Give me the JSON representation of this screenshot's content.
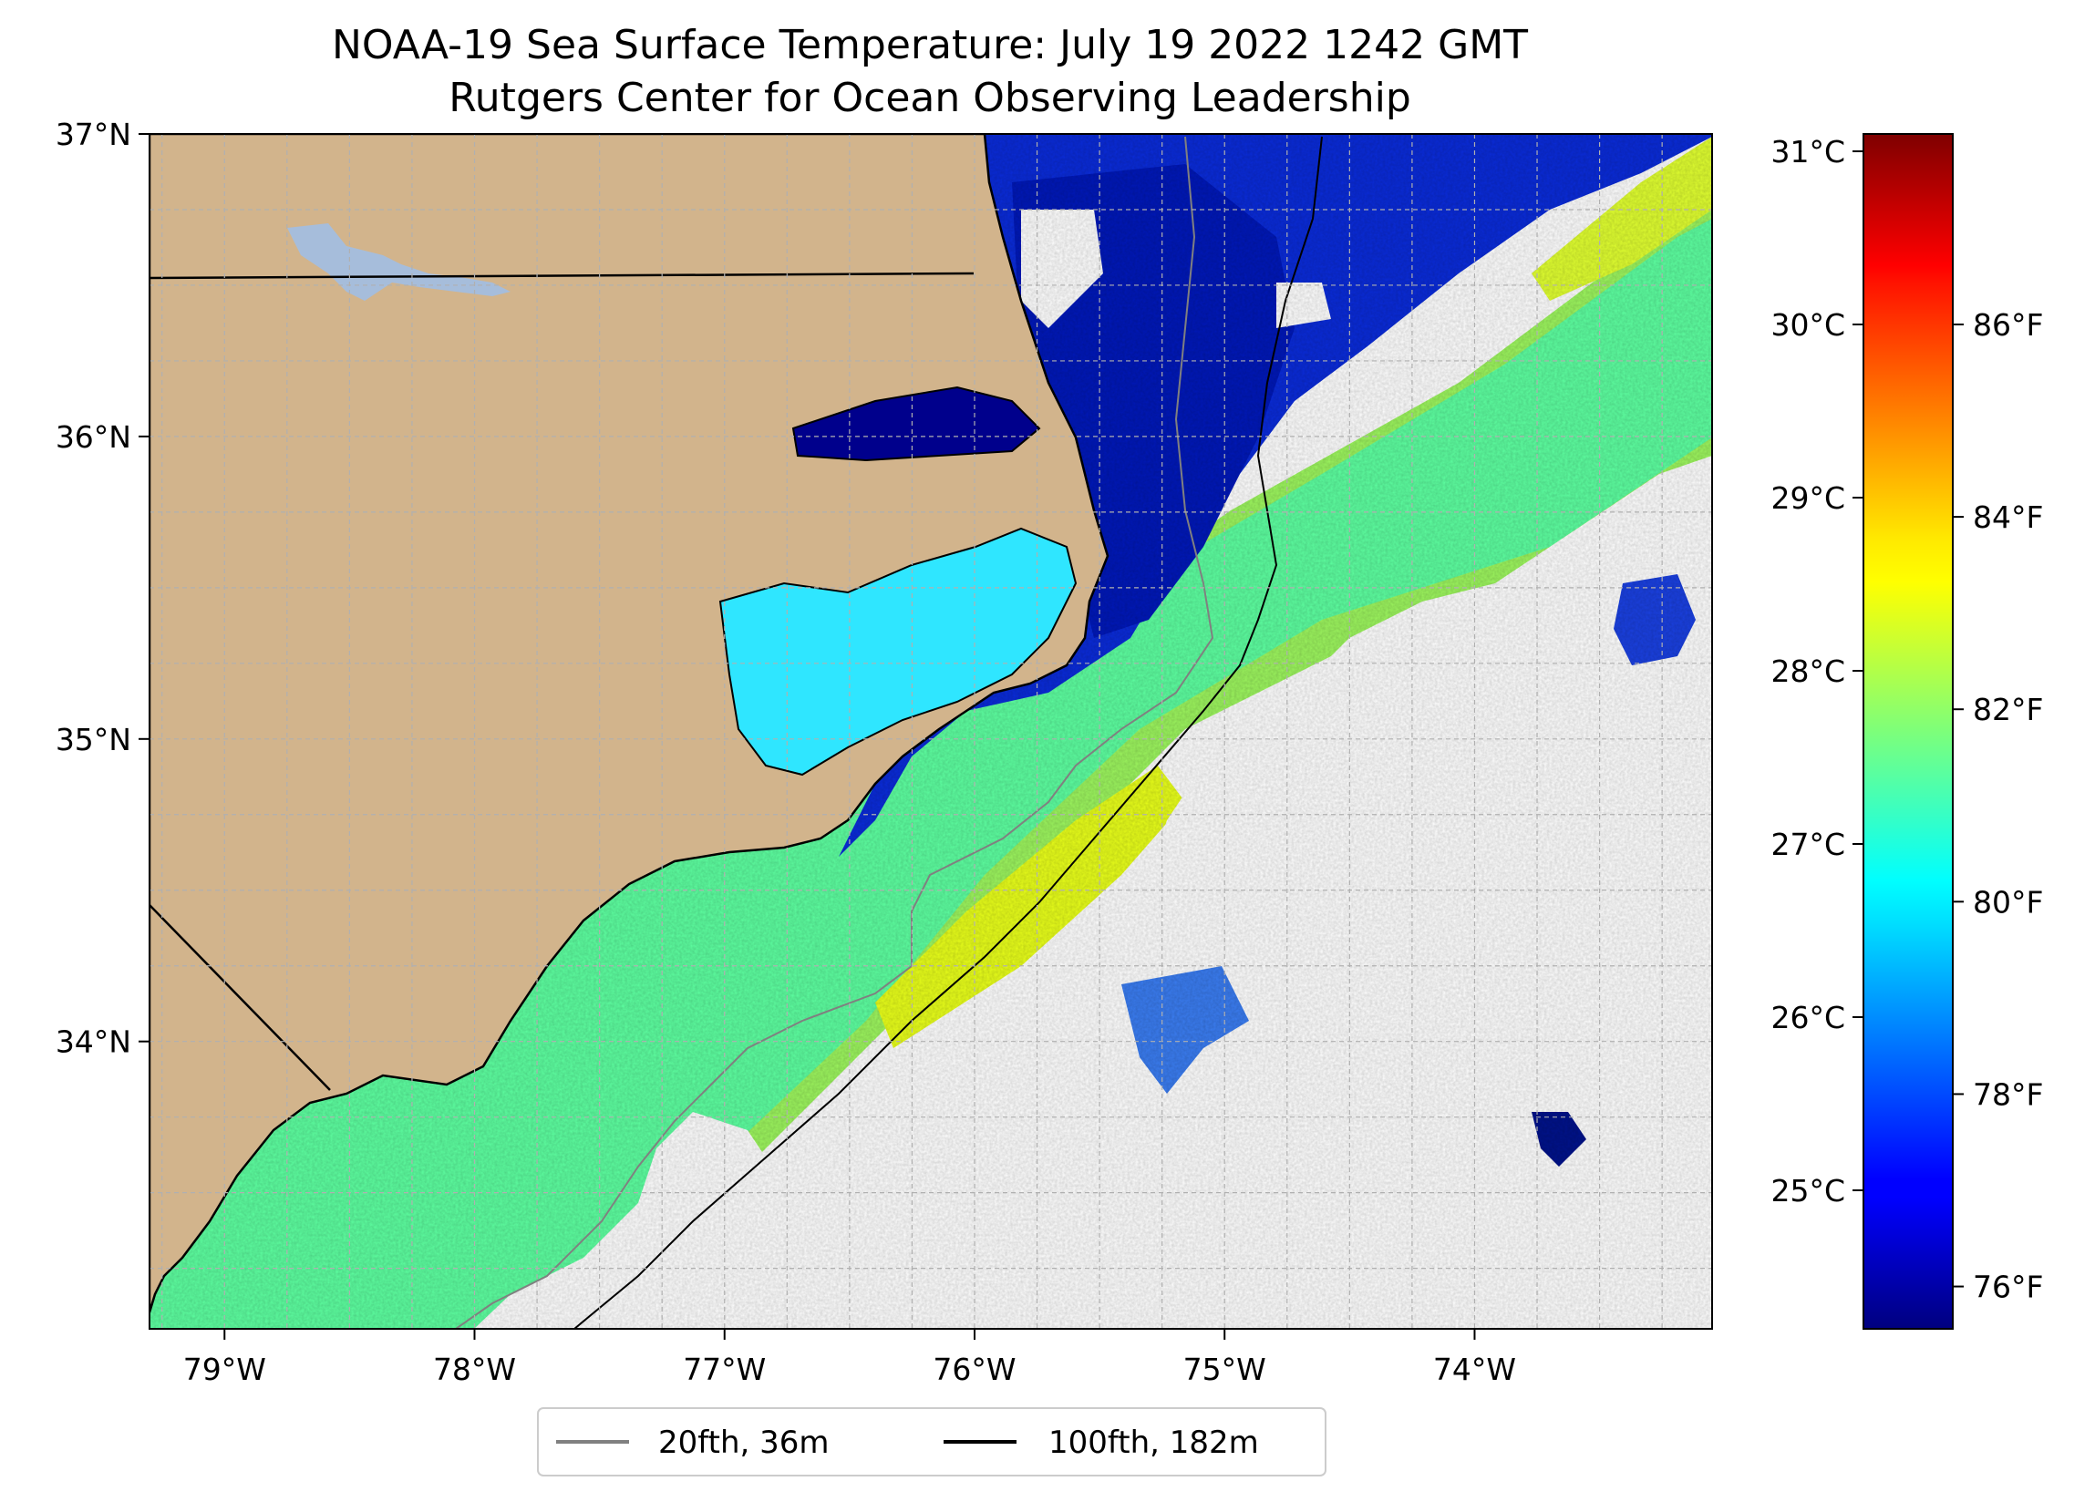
{
  "title": {
    "line1": "NOAA-19 Sea Surface Temperature: July 19 2022 1242 GMT",
    "line2": "Rutgers Center for Ocean Observing Leadership"
  },
  "map": {
    "lon_range": [
      -79.3,
      -73.05
    ],
    "lat_range": [
      33.05,
      37.0
    ],
    "lon_ticks": [
      {
        "value": -79,
        "label": "79°W"
      },
      {
        "value": -78,
        "label": "78°W"
      },
      {
        "value": -77,
        "label": "77°W"
      },
      {
        "value": -76,
        "label": "76°W"
      },
      {
        "value": -75,
        "label": "75°W"
      },
      {
        "value": -74,
        "label": "74°W"
      }
    ],
    "lat_ticks": [
      {
        "value": 37,
        "label": "37°N"
      },
      {
        "value": 36,
        "label": "36°N"
      },
      {
        "value": 35,
        "label": "35°N"
      },
      {
        "value": 34,
        "label": "34°N"
      }
    ],
    "grid": "on",
    "colors": {
      "land": "#d2b48c",
      "lakes": "#a6bddb",
      "isobath_20fth": "#808080",
      "isobath_100fth": "#000000",
      "cloud_mask": "#ffffff"
    }
  },
  "colorbar": {
    "celsius_range": [
      24.2,
      31.1
    ],
    "celsius_ticks": [
      {
        "value": 25,
        "label": "25°C"
      },
      {
        "value": 26,
        "label": "26°C"
      },
      {
        "value": 27,
        "label": "27°C"
      },
      {
        "value": 28,
        "label": "28°C"
      },
      {
        "value": 29,
        "label": "29°C"
      },
      {
        "value": 30,
        "label": "30°C"
      },
      {
        "value": 31,
        "label": "31°C"
      }
    ],
    "fahrenheit_ticks": [
      {
        "value": 76,
        "label": "76°F"
      },
      {
        "value": 78,
        "label": "78°F"
      },
      {
        "value": 80,
        "label": "80°F"
      },
      {
        "value": 82,
        "label": "82°F"
      },
      {
        "value": 84,
        "label": "84°F"
      },
      {
        "value": 86,
        "label": "86°F"
      }
    ],
    "colormap": "jet"
  },
  "legend": {
    "placement": "bottom-center",
    "items": [
      {
        "label": "20fth, 36m",
        "color": "#808080"
      },
      {
        "label": "100fth, 182m",
        "color": "#000000"
      }
    ]
  }
}
